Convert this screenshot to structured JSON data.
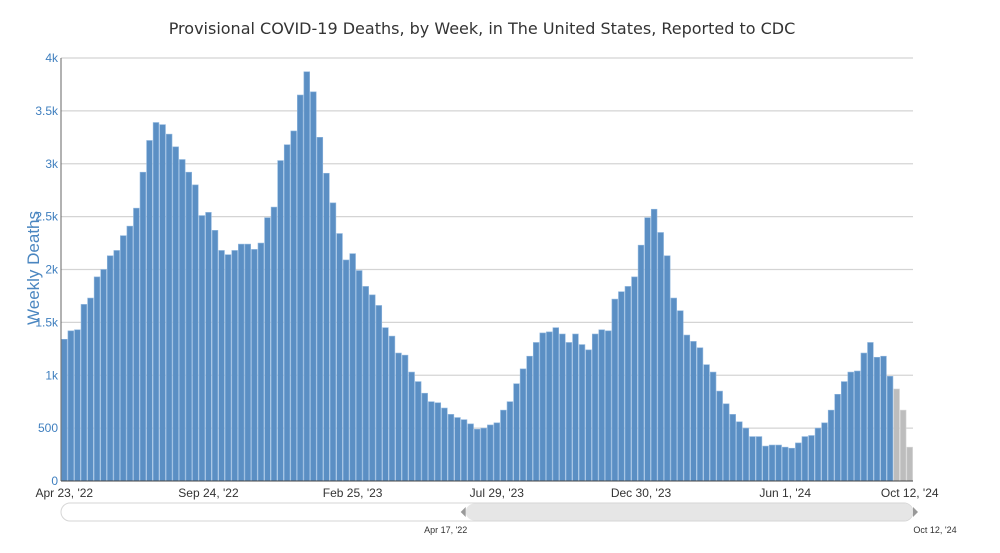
{
  "chart_data": {
    "type": "bar",
    "title": "Provisional COVID-19 Deaths, by Week, in The United States, Reported to CDC",
    "xlabel": "",
    "ylabel": "Weekly Deaths",
    "ylim": [
      0,
      4000
    ],
    "yticks": [
      0,
      500,
      1000,
      1500,
      2000,
      2500,
      3000,
      3500,
      4000
    ],
    "ytick_labels": [
      "0",
      "500",
      "1k",
      "1.5k",
      "2k",
      "2.5k",
      "3k",
      "3.5k",
      "4k"
    ],
    "xtick_labels": [
      "Apr 23, '22",
      "Sep 24, '22",
      "Feb 25, '23",
      "Jul 29, '23",
      "Dec 30, '23",
      "Jun 1, '24",
      "Oct 12, '24"
    ],
    "xtick_dates": [
      "2022-04-23",
      "2022-09-24",
      "2023-02-25",
      "2023-07-29",
      "2023-12-30",
      "2024-06-01",
      "2024-10-12"
    ],
    "grid": true,
    "colors": {
      "reported": "#5b8fc4",
      "incomplete": "#bdbdbd",
      "grid": "#d4d4d4",
      "axis_label": "#4a86c0"
    },
    "x": [
      "2022-04-23",
      "2022-04-30",
      "2022-05-07",
      "2022-05-14",
      "2022-05-21",
      "2022-05-28",
      "2022-06-04",
      "2022-06-11",
      "2022-06-18",
      "2022-06-25",
      "2022-07-02",
      "2022-07-09",
      "2022-07-16",
      "2022-07-23",
      "2022-07-30",
      "2022-08-06",
      "2022-08-13",
      "2022-08-20",
      "2022-08-27",
      "2022-09-03",
      "2022-09-10",
      "2022-09-17",
      "2022-09-24",
      "2022-10-01",
      "2022-10-08",
      "2022-10-15",
      "2022-10-22",
      "2022-10-29",
      "2022-11-05",
      "2022-11-12",
      "2022-11-19",
      "2022-11-26",
      "2022-12-03",
      "2022-12-10",
      "2022-12-17",
      "2022-12-24",
      "2022-12-31",
      "2023-01-07",
      "2023-01-14",
      "2023-01-21",
      "2023-01-28",
      "2023-02-04",
      "2023-02-11",
      "2023-02-18",
      "2023-02-25",
      "2023-03-04",
      "2023-03-11",
      "2023-03-18",
      "2023-03-25",
      "2023-04-01",
      "2023-04-08",
      "2023-04-15",
      "2023-04-22",
      "2023-04-29",
      "2023-05-06",
      "2023-05-13",
      "2023-05-20",
      "2023-05-27",
      "2023-06-03",
      "2023-06-10",
      "2023-06-17",
      "2023-06-24",
      "2023-07-01",
      "2023-07-08",
      "2023-07-15",
      "2023-07-22",
      "2023-07-29",
      "2023-08-05",
      "2023-08-12",
      "2023-08-19",
      "2023-08-26",
      "2023-09-02",
      "2023-09-09",
      "2023-09-16",
      "2023-09-23",
      "2023-09-30",
      "2023-10-07",
      "2023-10-14",
      "2023-10-21",
      "2023-10-28",
      "2023-11-04",
      "2023-11-11",
      "2023-11-18",
      "2023-11-25",
      "2023-12-02",
      "2023-12-09",
      "2023-12-16",
      "2023-12-23",
      "2023-12-30",
      "2024-01-06",
      "2024-01-13",
      "2024-01-20",
      "2024-01-27",
      "2024-02-03",
      "2024-02-10",
      "2024-02-17",
      "2024-02-24",
      "2024-03-02",
      "2024-03-09",
      "2024-03-16",
      "2024-03-23",
      "2024-03-30",
      "2024-04-06",
      "2024-04-13",
      "2024-04-20",
      "2024-04-27",
      "2024-05-04",
      "2024-05-11",
      "2024-05-18",
      "2024-05-25",
      "2024-06-01",
      "2024-06-08",
      "2024-06-15",
      "2024-06-22",
      "2024-06-29",
      "2024-07-06",
      "2024-07-13",
      "2024-07-20",
      "2024-07-27",
      "2024-08-03",
      "2024-08-10",
      "2024-08-17",
      "2024-08-24",
      "2024-08-31",
      "2024-09-07",
      "2024-09-14",
      "2024-09-21",
      "2024-09-28",
      "2024-10-05",
      "2024-10-12"
    ],
    "values": [
      1340,
      1420,
      1430,
      1670,
      1730,
      1930,
      2000,
      2130,
      2180,
      2320,
      2410,
      2580,
      2920,
      3220,
      3390,
      3370,
      3280,
      3160,
      3040,
      2920,
      2800,
      2510,
      2540,
      2370,
      2180,
      2140,
      2180,
      2240,
      2240,
      2190,
      2250,
      2490,
      2590,
      3030,
      3180,
      3310,
      3650,
      3870,
      3680,
      3250,
      2910,
      2630,
      2340,
      2090,
      2150,
      1990,
      1840,
      1760,
      1660,
      1450,
      1370,
      1210,
      1190,
      1030,
      940,
      830,
      750,
      740,
      690,
      630,
      600,
      580,
      540,
      490,
      500,
      530,
      550,
      670,
      750,
      920,
      1060,
      1180,
      1310,
      1400,
      1410,
      1450,
      1390,
      1310,
      1390,
      1290,
      1240,
      1390,
      1430,
      1420,
      1720,
      1790,
      1840,
      1930,
      2230,
      2490,
      2570,
      2350,
      2130,
      1730,
      1610,
      1380,
      1320,
      1260,
      1100,
      1030,
      850,
      730,
      630,
      560,
      500,
      420,
      420,
      330,
      340,
      340,
      320,
      310,
      360,
      420,
      430,
      500,
      550,
      670,
      820,
      940,
      1030,
      1040,
      1210,
      1310,
      1170,
      1180,
      990,
      870,
      670,
      320
    ],
    "incomplete_last_n": 3
  },
  "range_slider": {
    "start_label": "Apr 17, '22",
    "end_label": "Oct 12, '24",
    "selected_fraction": [
      0.475,
      1.0
    ]
  }
}
